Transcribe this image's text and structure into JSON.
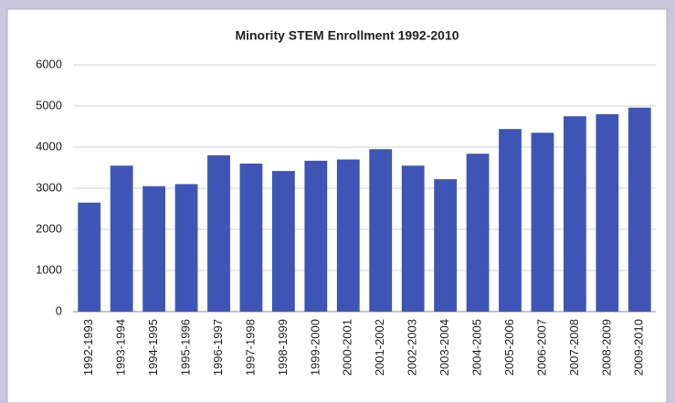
{
  "chart_data": {
    "type": "bar",
    "title": "Minority STEM Enrollment 1992-2010",
    "categories": [
      "1992-1993",
      "1993-1994",
      "1994-1995",
      "1995-1996",
      "1996-1997",
      "1997-1998",
      "1998-1999",
      "1999-2000",
      "2000-2001",
      "2001-2002",
      "2002-2003",
      "2003-2004",
      "2004-2005",
      "2005-2006",
      "2006-2007",
      "2007-2008",
      "2008-2009",
      "2009-2010"
    ],
    "values": [
      2650,
      3550,
      3050,
      3100,
      3800,
      3600,
      3420,
      3670,
      3700,
      3950,
      3550,
      3220,
      3840,
      4440,
      4350,
      4750,
      4800,
      4960
    ],
    "color": "#3f55b5",
    "ylim": [
      0,
      6000
    ],
    "yticks": [
      0,
      1000,
      2000,
      3000,
      4000,
      5000,
      6000
    ],
    "grid": true
  }
}
